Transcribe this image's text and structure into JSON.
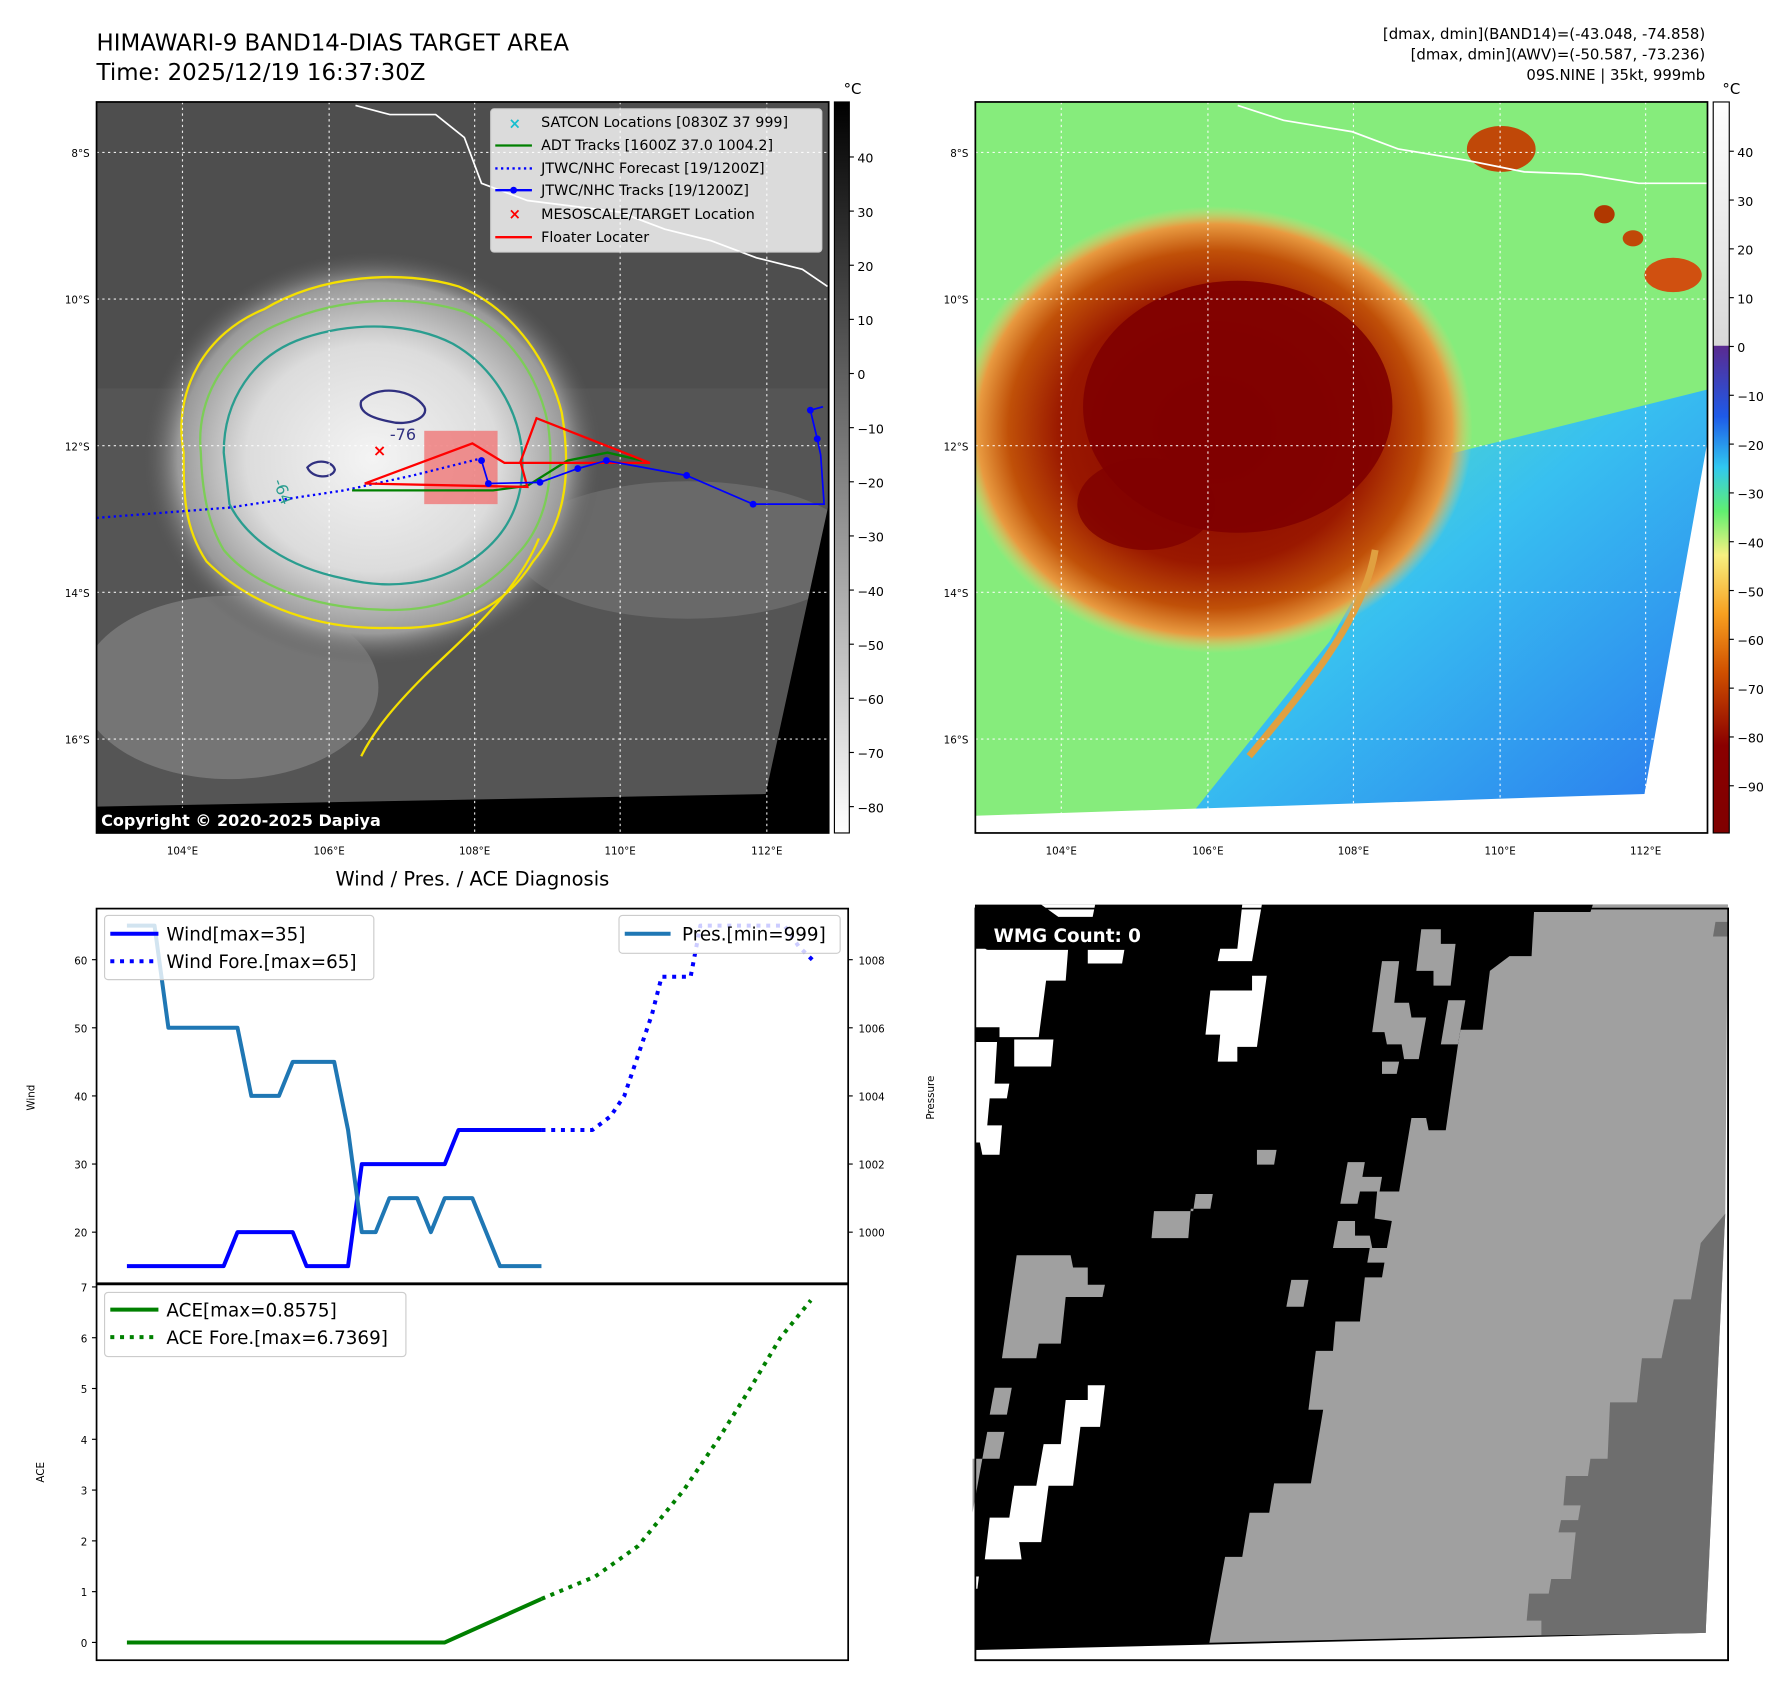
{
  "header": {
    "title": "HIMAWARI-9 BAND14-DIAS TARGET AREA",
    "time": "Time: 2025/12/19 16:37:30Z",
    "stat1": "[dmax, dmin](BAND14)=(-43.048, -74.858)",
    "stat2": "[dmax, dmin](AWV)=(-50.587, -73.236)",
    "stat3": "09S.NINE | 35kt, 999mb"
  },
  "map": {
    "lat_labels": [
      "8°S",
      "10°S",
      "12°S",
      "14°S",
      "16°S"
    ],
    "lon_labels": [
      "104°E",
      "106°E",
      "108°E",
      "110°E",
      "112°E"
    ],
    "contour_labels": [
      "-76",
      "-64"
    ],
    "copyright": "Copyright © 2020-2025 Dapiya",
    "legend": [
      {
        "label": "SATCON Locations [0830Z 37 999]",
        "color": "#17becf"
      },
      {
        "label": "ADT Tracks [1600Z 37.0 1004.2]",
        "color": "#008000"
      },
      {
        "label": "JTWC/NHC Forecast [19/1200Z]",
        "color": "#0000ff"
      },
      {
        "label": "JTWC/NHC Tracks [19/1200Z]",
        "color": "#0000ff"
      },
      {
        "label": "MESOSCALE/TARGET Location",
        "color": "#ff0000"
      },
      {
        "label": "Floater Locater",
        "color": "#ff0000"
      }
    ],
    "cbar_unit": "°C",
    "cbar1_ticks": [
      "40",
      "30",
      "20",
      "10",
      "0",
      "−10",
      "−20",
      "−30",
      "−40",
      "−50",
      "−60",
      "−70",
      "−80"
    ],
    "cbar2_ticks": [
      "40",
      "30",
      "20",
      "10",
      "0",
      "−10",
      "−20",
      "−30",
      "−40",
      "−50",
      "−60",
      "−70",
      "−80",
      "−90"
    ]
  },
  "wmg": {
    "label": "WMG Count: 0"
  },
  "chart_data": [
    {
      "type": "line",
      "title": "Wind / Pres. / ACE Diagnosis",
      "ylabel": "Wind",
      "y2label": "Pressure",
      "ylim": [
        12.5,
        67.5
      ],
      "y2lim": [
        998.5,
        1009.5
      ],
      "xlim": [
        -2.2,
        52.2
      ],
      "yticks": [
        "60",
        "50",
        "40",
        "30",
        "20"
      ],
      "y2ticks": [
        "1008",
        "1006",
        "1004",
        "1002",
        "1000"
      ],
      "series": [
        {
          "name": "Wind[max=35]",
          "style": "solid",
          "color": "#0000ff",
          "x": [
            0,
            7,
            8,
            12,
            13,
            16,
            17,
            23,
            24,
            30
          ],
          "values": [
            15,
            15,
            20,
            20,
            15,
            15,
            30,
            30,
            35,
            35
          ]
        },
        {
          "name": "Wind Fore.[max=65]",
          "style": "dotted",
          "color": "#0000ff",
          "x": [
            30,
            33.7,
            35,
            36,
            37,
            38,
            38.7,
            40.8,
            41.5,
            47.6,
            48.6,
            49.6
          ],
          "values": [
            35,
            35,
            37,
            40,
            46,
            52,
            57.5,
            57.5,
            65,
            65,
            62,
            60
          ]
        },
        {
          "name": "Pres.[min=999]",
          "style": "solid",
          "color": "#1f77b4",
          "axis": "right",
          "x": [
            0,
            2,
            3,
            8,
            9,
            11,
            12,
            15,
            16,
            17,
            18,
            19,
            21,
            22,
            23,
            25,
            27,
            30
          ],
          "values": [
            1009,
            1009,
            1006,
            1006,
            1004,
            1004,
            1005,
            1005,
            1003,
            1000,
            1000,
            1001,
            1001,
            1000,
            1001,
            1001,
            999,
            999
          ]
        }
      ]
    },
    {
      "type": "line",
      "ylabel": "ACE",
      "ylim": [
        -0.35,
        7.05
      ],
      "xlim": [
        -2.2,
        52.2
      ],
      "yticks": [
        "7",
        "6",
        "5",
        "4",
        "3",
        "2",
        "1",
        "0"
      ],
      "series": [
        {
          "name": "ACE[max=0.8575]",
          "style": "solid",
          "color": "#008000",
          "x": [
            0,
            23,
            30
          ],
          "values": [
            0,
            0,
            0.8575
          ]
        },
        {
          "name": "ACE Fore.[max=6.7369]",
          "style": "dotted",
          "color": "#008000",
          "x": [
            30,
            33.9,
            37,
            40.3,
            42.8,
            45.1,
            47.3,
            49.5
          ],
          "values": [
            0.8575,
            1.3,
            1.9,
            3.0,
            4.0,
            5.0,
            6.0,
            6.7369
          ]
        }
      ]
    }
  ]
}
